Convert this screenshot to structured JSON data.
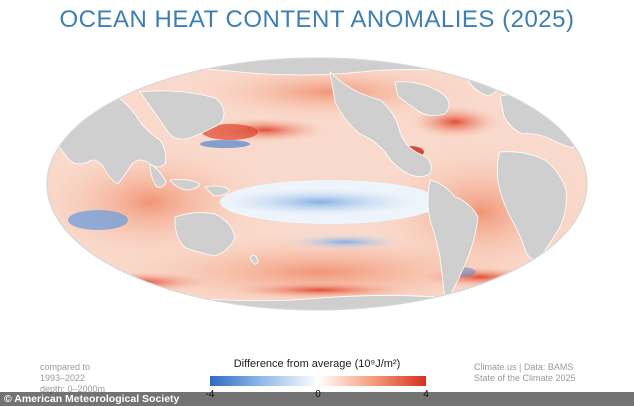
{
  "title": "OCEAN HEAT CONTENT ANOMALIES (2025)",
  "caption_left": [
    "compared to",
    "1993–2022",
    "depth: 0–2000m"
  ],
  "caption_right": [
    "Climate.us | Data: BAMS",
    "State of the Climate 2025"
  ],
  "legend": {
    "title": "Difference from average (10⁹J/m²)",
    "ticks": [
      "-4",
      "0",
      "4"
    ],
    "range": [
      -4,
      4
    ],
    "colors": {
      "low": "#2f6bc2",
      "mid": "#ffffff",
      "high": "#d6311f"
    }
  },
  "footer": "© American Meteorological Society",
  "colors": {
    "land": "#cfcfcf",
    "land_border": "#ffffff",
    "title": "#3d7fb3"
  }
}
